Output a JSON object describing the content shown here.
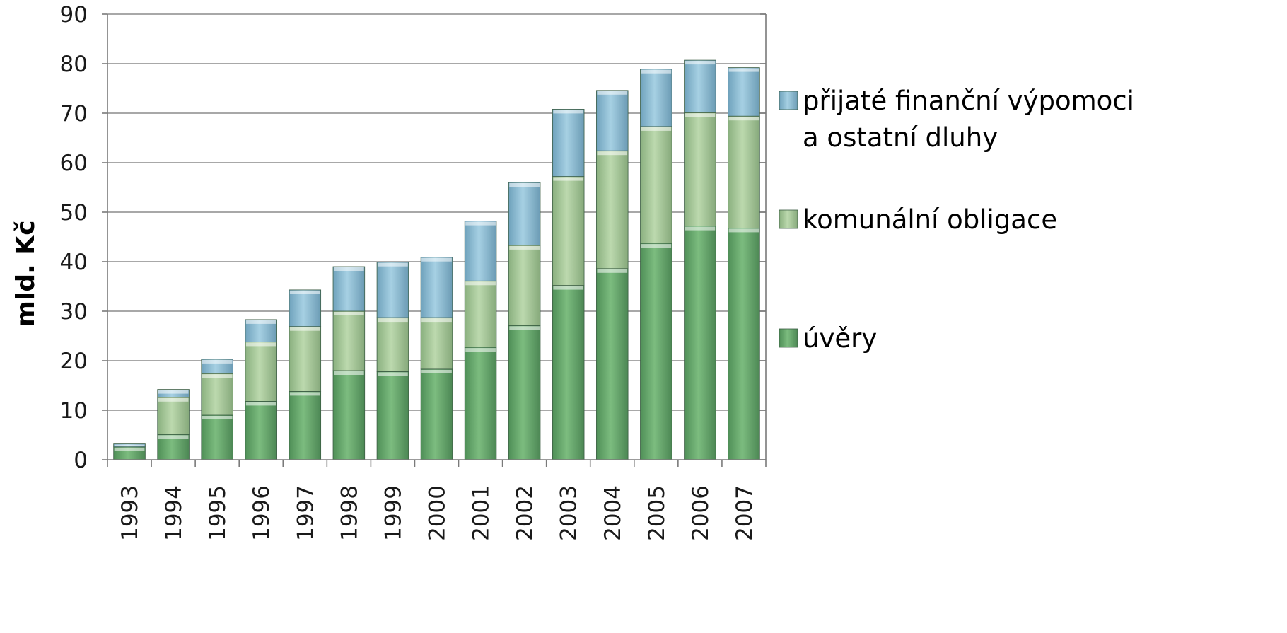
{
  "chart_data": {
    "type": "bar",
    "stacked": true,
    "title": "",
    "xlabel": "",
    "ylabel": "mld. Kč",
    "ylim": [
      0,
      90
    ],
    "yticks": [
      0,
      10,
      20,
      30,
      40,
      50,
      60,
      70,
      80,
      90
    ],
    "grid": true,
    "legend_position": "right",
    "categories": [
      "1993",
      "1994",
      "1995",
      "1996",
      "1997",
      "1998",
      "1999",
      "2000",
      "2001",
      "2002",
      "2003",
      "2004",
      "2005",
      "2006",
      "2007"
    ],
    "series": [
      {
        "name": "úvěry",
        "color": "#6aa86f",
        "values": [
          2.6,
          5.1,
          9.0,
          11.8,
          13.8,
          18.0,
          17.8,
          18.3,
          22.7,
          27.1,
          35.2,
          38.6,
          43.7,
          47.2,
          46.8
        ]
      },
      {
        "name": "komunální obligace",
        "color": "#a8c99a",
        "values": [
          0.0,
          7.5,
          8.4,
          12.0,
          13.1,
          12.0,
          10.9,
          10.4,
          13.4,
          16.2,
          22.0,
          23.8,
          23.6,
          22.9,
          22.6
        ]
      },
      {
        "name": "přijaté finanční výpomoci a ostatní dluhy",
        "name_lines": [
          "přijaté finanční výpomoci",
          "a ostatní dluhy"
        ],
        "color": "#8fbfd6",
        "values": [
          0.6,
          1.6,
          2.9,
          4.5,
          7.4,
          9.0,
          11.2,
          12.2,
          12.1,
          12.7,
          13.6,
          12.2,
          11.6,
          10.6,
          9.8
        ]
      }
    ]
  }
}
